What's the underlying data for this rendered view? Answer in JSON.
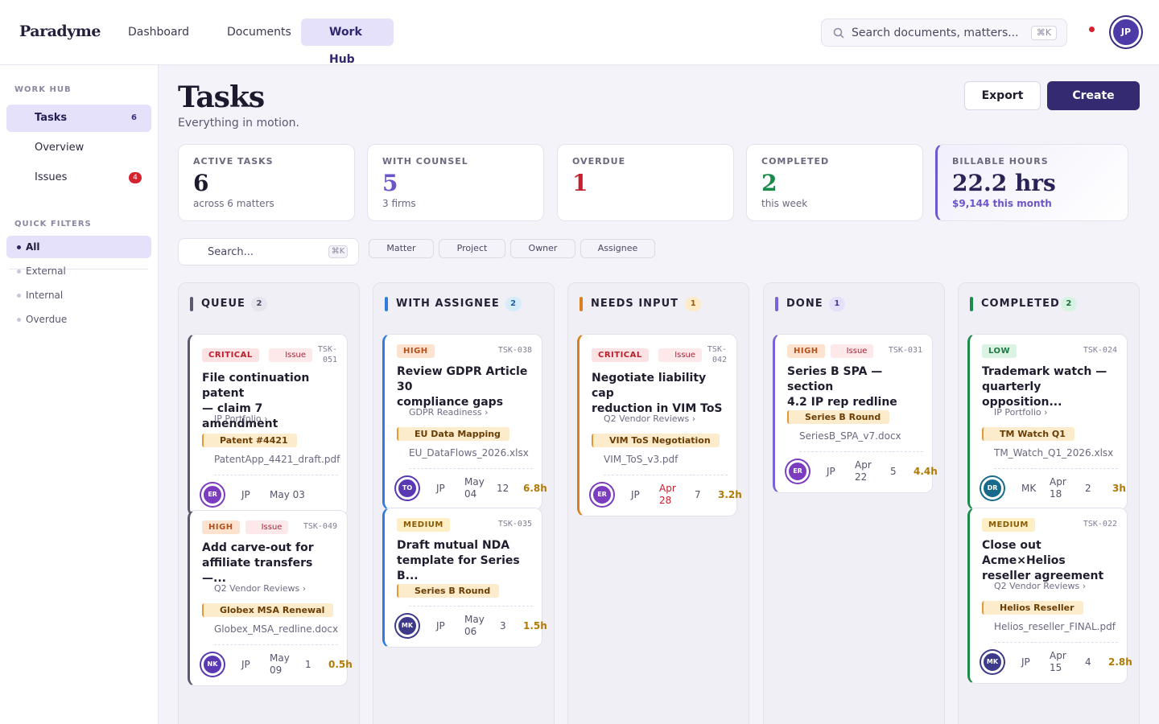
{
  "app": {
    "name": "Paradyme"
  },
  "nav": {
    "dashboard": "Dashboard",
    "documents": "Documents",
    "work_hub": "Work Hub"
  },
  "search": {
    "placeholder": "Search documents, matters...",
    "shortcut": "⌘K"
  },
  "user": {
    "initials": "JP"
  },
  "sidebar": {
    "section_title": "WORK HUB",
    "items": [
      {
        "label": "Tasks",
        "count": "6"
      },
      {
        "label": "Overview"
      },
      {
        "label": "Issues",
        "badge": "4"
      }
    ],
    "quick_filters_title": "QUICK FILTERS",
    "filters": [
      "All",
      "External",
      "Internal",
      "Overdue"
    ]
  },
  "page": {
    "title": "Tasks",
    "subtitle": "Everything in motion.",
    "export_label": "Export",
    "create_label": "Create"
  },
  "stats": [
    {
      "label": "ACTIVE TASKS",
      "value": "6",
      "sub": "across 6 matters",
      "color": "#1d1a2e"
    },
    {
      "label": "WITH COUNSEL",
      "value": "5",
      "sub": "3 firms",
      "color": "#6b55c9"
    },
    {
      "label": "OVERDUE",
      "value": "1",
      "sub": "",
      "color": "#c81f2d"
    },
    {
      "label": "COMPLETED",
      "value": "2",
      "sub": "this week",
      "color": "#1b8a4b"
    },
    {
      "label": "BILLABLE HOURS",
      "value": "22.2 hrs",
      "sub": "$9,144 this month",
      "color": "#2a2456"
    }
  ],
  "filters": {
    "search_placeholder": "Search...",
    "search_shortcut": "⌘K",
    "chips": [
      "Matter",
      "Project",
      "Owner",
      "Assignee"
    ]
  },
  "columns": [
    {
      "title": "QUEUE",
      "count": "2",
      "color": "#5b5870",
      "count_bg": "#e6e5ee",
      "count_fg": "#4a4760",
      "cards": [
        {
          "priority": "CRITICAL",
          "issue": "Issue",
          "id1": "TSK-",
          "id2": "051",
          "title1": "File continuation patent",
          "title2": "— claim 7 amendment",
          "project": "IP Portfolio  ›",
          "tag": "Patent #4421",
          "file": "PatentApp_4421_draft.pdf",
          "avatar": "ER",
          "owner": "JP",
          "date1": "May 03",
          "date2": "",
          "count": "",
          "hours": ""
        },
        {
          "priority": "HIGH",
          "issue": "Issue",
          "id1": "TSK-049",
          "id2": "",
          "title1": "Add carve-out for",
          "title2": "affiliate transfers —...",
          "project": "Q2 Vendor Reviews  ›",
          "tag": "Globex MSA Renewal",
          "file": "Globex_MSA_redline.docx",
          "avatar": "NK",
          "owner": "JP",
          "date1": "May",
          "date2": "09",
          "count": "1",
          "hours": "0.5h"
        }
      ]
    },
    {
      "title": "WITH ASSIGNEE",
      "count": "2",
      "color": "#2f7de0",
      "count_bg": "#d7ecfb",
      "count_fg": "#1e5fa8",
      "cards": [
        {
          "priority": "HIGH",
          "issue": "",
          "id1": "TSK-038",
          "id2": "",
          "title1": "Review GDPR Article 30",
          "title2": "compliance gaps",
          "project": "GDPR Readiness  ›",
          "tag": "EU Data Mapping",
          "file": "EU_DataFlows_2026.xlsx",
          "avatar": "TO",
          "owner": "JP",
          "date1": "May",
          "date2": "04",
          "count": "12",
          "hours": "6.8h"
        },
        {
          "priority": "MEDIUM",
          "issue": "",
          "id1": "TSK-035",
          "id2": "",
          "title1": "Draft mutual NDA",
          "title2": "template for Series B...",
          "project": "",
          "tag": "Series B Round",
          "file": "",
          "avatar": "MK",
          "owner": "JP",
          "date1": "May",
          "date2": "06",
          "count": "3",
          "hours": "1.5h"
        }
      ]
    },
    {
      "title": "NEEDS INPUT",
      "count": "1",
      "color": "#d8801c",
      "count_bg": "#fdebc8",
      "count_fg": "#9a5a08",
      "cards": [
        {
          "priority": "CRITICAL",
          "issue": "Issue",
          "id1": "TSK-",
          "id2": "042",
          "title1": "Negotiate liability cap",
          "title2": "reduction in VIM ToS",
          "project": "Q2 Vendor Reviews  ›",
          "tag": "VIM ToS Negotiation",
          "file": "VIM_ToS_v3.pdf",
          "avatar": "ER",
          "owner": "JP",
          "date1": "Apr",
          "date2": "28",
          "count": "7",
          "hours": "3.2h"
        }
      ]
    },
    {
      "title": "DONE",
      "count": "1",
      "color": "#7a63d8",
      "count_bg": "#e6e1fb",
      "count_fg": "#4a3aa0",
      "cards": [
        {
          "priority": "HIGH",
          "issue": "Issue",
          "id1": "TSK-031",
          "id2": "",
          "title1": "Series B SPA — section",
          "title2": "4.2 IP rep redline",
          "project": "",
          "tag": "Series B Round",
          "file": "SeriesB_SPA_v7.docx",
          "avatar": "ER",
          "owner": "JP",
          "date1": "Apr",
          "date2": "22",
          "count": "5",
          "hours": "4.4h"
        }
      ]
    },
    {
      "title": "COMPLETED",
      "count": "2",
      "color": "#1b8a4b",
      "count_bg": "#d8f2e1",
      "count_fg": "#17703e",
      "cards": [
        {
          "priority": "LOW",
          "issue": "",
          "id1": "TSK-024",
          "id2": "",
          "title1": "Trademark watch —",
          "title2": "quarterly opposition...",
          "project": "IP Portfolio  ›",
          "tag": "TM Watch Q1",
          "file": "TM_Watch_Q1_2026.xlsx",
          "avatar": "DR",
          "owner": "MK",
          "date1": "Apr",
          "date2": "18",
          "count": "2",
          "hours": "3h"
        },
        {
          "priority": "MEDIUM",
          "issue": "",
          "id1": "TSK-022",
          "id2": "",
          "title1": "Close out Acme×Helios",
          "title2": "reseller agreement",
          "project": "Q2 Vendor Reviews  ›",
          "tag": "Helios Reseller",
          "file": "Helios_reseller_FINAL.pdf",
          "avatar": "MK",
          "owner": "JP",
          "date1": "Apr",
          "date2": "15",
          "count": "4",
          "hours": "2.8h"
        }
      ]
    }
  ]
}
